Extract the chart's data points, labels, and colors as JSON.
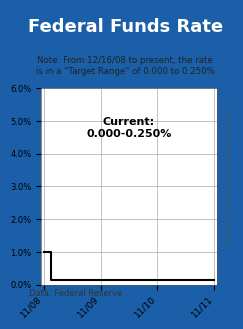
{
  "title": "Federal Funds Rate",
  "title_bg_color": "#1a5fa8",
  "title_text_color": "#ffffff",
  "note_text": "Note: From 12/16/08 to present, the rate\nis in a \"Target Range\" of 0.000 to 0.250%",
  "annotation_text": "Current:\n0.000-0.250%",
  "data_source": "Data: Federal Reserve",
  "copyright_text": "©ChartForce  Do not reproduce without permission.",
  "border_color": "#1a5fa8",
  "x_ticks": [
    0,
    1,
    2,
    3
  ],
  "x_tick_labels": [
    "11/08",
    "11/09",
    "11/10",
    "11/11"
  ],
  "ylim": [
    0,
    6.0
  ],
  "yticks": [
    0.0,
    1.0,
    2.0,
    3.0,
    4.0,
    5.0,
    6.0
  ],
  "ytick_labels": [
    "0.0%",
    "1.0%",
    "2.0%",
    "3.0%",
    "4.0%",
    "5.0%",
    "6.0%"
  ],
  "line_data_x": [
    0,
    0.13,
    0.13,
    3.0
  ],
  "line_data_y": [
    1.0,
    1.0,
    0.125,
    0.125
  ],
  "line_color": "#000000",
  "line_width": 1.5,
  "grid_color": "#aaaaaa",
  "background_color": "#ffffff",
  "plot_bg_color": "#ffffff"
}
